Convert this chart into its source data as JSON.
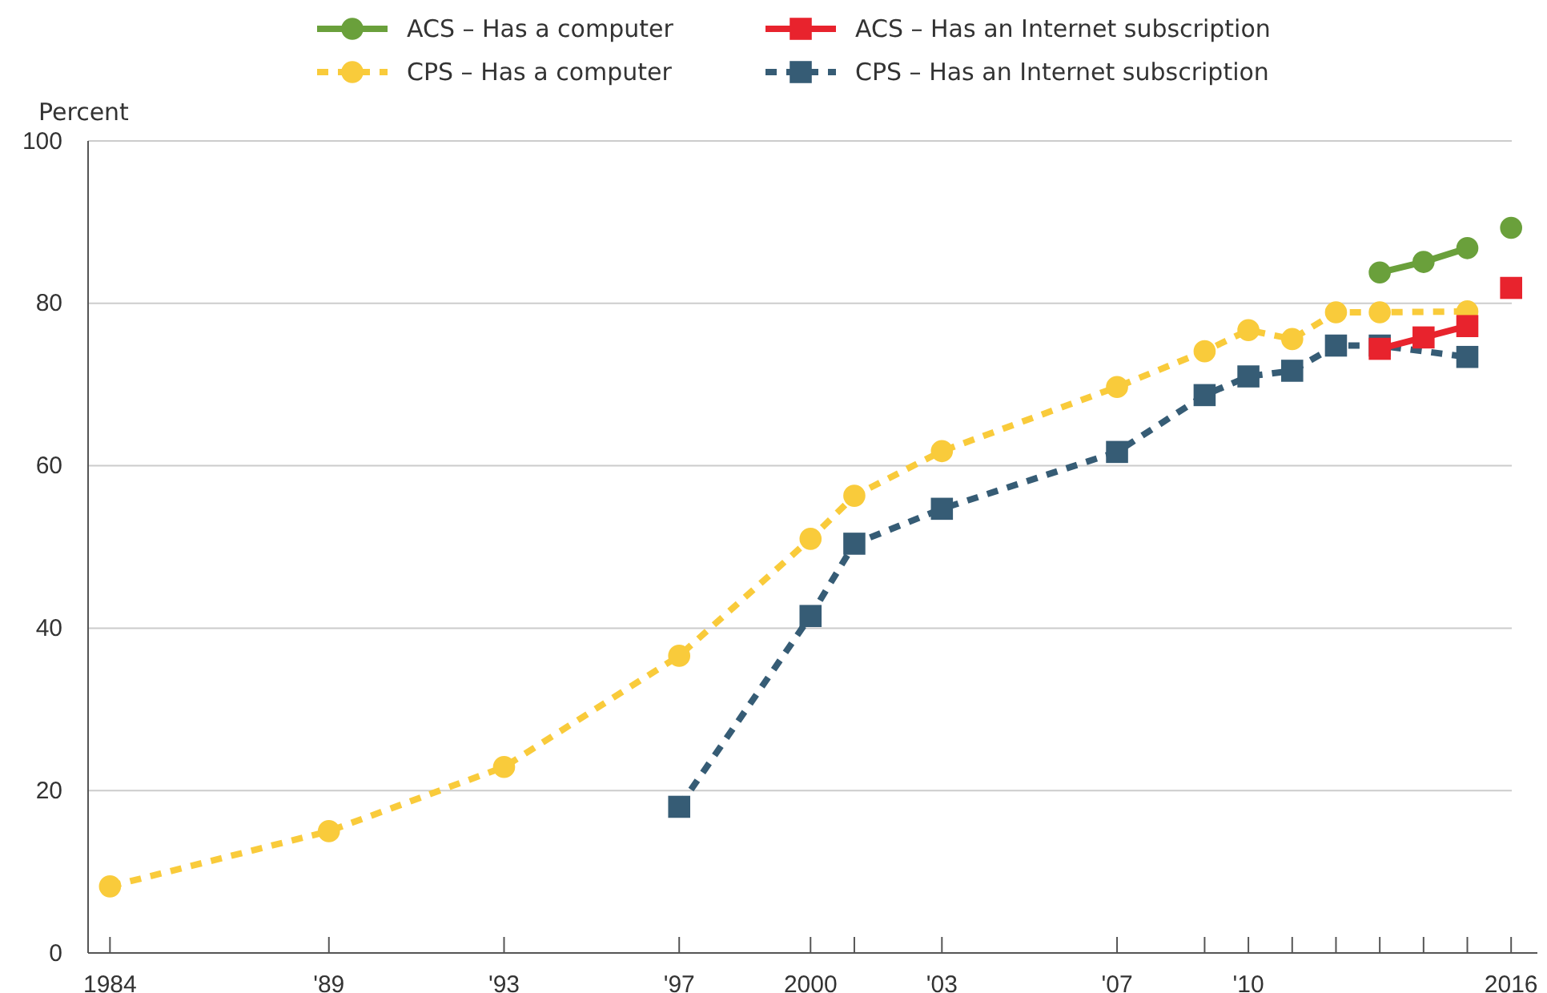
{
  "chart_data": {
    "type": "line",
    "ylabel": "Percent",
    "xlim": [
      1983.5,
      2016.6
    ],
    "ylim": [
      0,
      100
    ],
    "xticks": [
      {
        "value": 1984,
        "label": "1984"
      },
      {
        "value": 1989,
        "label": "'89"
      },
      {
        "value": 1993,
        "label": "'93"
      },
      {
        "value": 1997,
        "label": "'97"
      },
      {
        "value": 2000,
        "label": "2000"
      },
      {
        "value": 2001,
        "label": null
      },
      {
        "value": 2003,
        "label": "'03"
      },
      {
        "value": 2007,
        "label": "'07"
      },
      {
        "value": 2009,
        "label": null
      },
      {
        "value": 2010,
        "label": "'10"
      },
      {
        "value": 2011,
        "label": null
      },
      {
        "value": 2012,
        "label": null
      },
      {
        "value": 2013,
        "label": null
      },
      {
        "value": 2014,
        "label": null
      },
      {
        "value": 2015,
        "label": null
      },
      {
        "value": 2016,
        "label": "2016"
      }
    ],
    "yticks": [
      0,
      20,
      40,
      60,
      80,
      100
    ],
    "grid": "y",
    "legend": "top",
    "series": [
      {
        "name": "CPS – Has a computer",
        "color": "#f9cb3b",
        "marker": "circle",
        "line_style": "dashed",
        "x": [
          1984,
          1989,
          1993,
          1997,
          2000,
          2001,
          2003,
          2007,
          2009,
          2010,
          2011,
          2012,
          2013,
          2015
        ],
        "values": [
          8.2,
          15.0,
          22.9,
          36.6,
          51.0,
          56.3,
          61.8,
          69.7,
          74.1,
          76.7,
          75.6,
          78.9,
          78.9,
          79.0
        ]
      },
      {
        "name": "CPS – Has an Internet subscription",
        "color": "#365c75",
        "marker": "square",
        "line_style": "dashed",
        "x": [
          1997,
          2000,
          2001,
          2003,
          2007,
          2009,
          2010,
          2011,
          2012,
          2013,
          2015
        ],
        "values": [
          18.0,
          41.5,
          50.4,
          54.7,
          61.7,
          68.7,
          71.0,
          71.7,
          74.8,
          74.8,
          73.4
        ]
      },
      {
        "name": "ACS – Has a computer",
        "color": "#6aa03b",
        "marker": "circle",
        "line_style": "solid",
        "x": [
          2013,
          2014,
          2015
        ],
        "values": [
          83.8,
          85.1,
          86.8
        ]
      },
      {
        "name": "ACS – Has an Internet subscription",
        "color": "#e8232d",
        "marker": "square",
        "line_style": "solid",
        "x": [
          2013,
          2014,
          2015
        ],
        "values": [
          74.4,
          75.8,
          77.2
        ]
      },
      {
        "type": "scatter",
        "color": "#6aa03b",
        "marker": "circle",
        "x": [
          2016
        ],
        "values": [
          89.3
        ]
      },
      {
        "type": "scatter",
        "color": "#e8232d",
        "marker": "square",
        "x": [
          2016
        ],
        "values": [
          81.9
        ]
      }
    ]
  }
}
